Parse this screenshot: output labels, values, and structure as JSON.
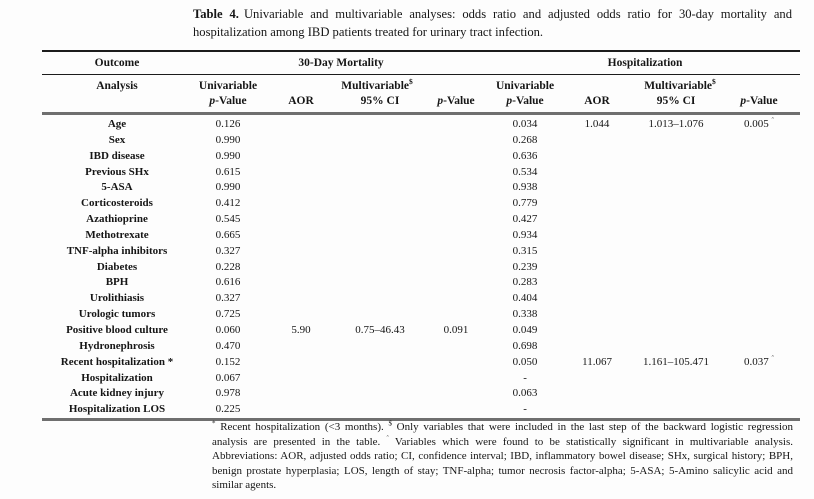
{
  "caption": {
    "label": "Table 4.",
    "text": "Univariable and multivariable analyses: odds ratio and adjusted odds ratio for 30-day mortality and hospitalization among IBD patients treated for urinary tract infection."
  },
  "table": {
    "group_headers": {
      "outcome": "Outcome",
      "mortality": "30-Day Mortality",
      "hospitalization": "Hospitalization"
    },
    "sub_headers": {
      "analysis": "Analysis",
      "univariable": "Univariable",
      "multivariable": "Multivariable",
      "multivariable_marker": "$"
    },
    "col_headers": {
      "p_italic": "p",
      "p_rest": "-Value",
      "aor": "AOR",
      "ci": "95% CI"
    },
    "significance_marker": "ˆ",
    "rows": [
      [
        "Age",
        "0.126",
        "",
        "",
        "",
        "0.034",
        "1.044",
        "1.013–1.076",
        "0.005^"
      ],
      [
        "Sex",
        "0.990",
        "",
        "",
        "",
        "0.268",
        "",
        "",
        ""
      ],
      [
        "IBD disease",
        "0.990",
        "",
        "",
        "",
        "0.636",
        "",
        "",
        ""
      ],
      [
        "Previous SHx",
        "0.615",
        "",
        "",
        "",
        "0.534",
        "",
        "",
        ""
      ],
      [
        "5-ASA",
        "0.990",
        "",
        "",
        "",
        "0.938",
        "",
        "",
        ""
      ],
      [
        "Corticosteroids",
        "0.412",
        "",
        "",
        "",
        "0.779",
        "",
        "",
        ""
      ],
      [
        "Azathioprine",
        "0.545",
        "",
        "",
        "",
        "0.427",
        "",
        "",
        ""
      ],
      [
        "Methotrexate",
        "0.665",
        "",
        "",
        "",
        "0.934",
        "",
        "",
        ""
      ],
      [
        "TNF-alpha inhibitors",
        "0.327",
        "",
        "",
        "",
        "0.315",
        "",
        "",
        ""
      ],
      [
        "Diabetes",
        "0.228",
        "",
        "",
        "",
        "0.239",
        "",
        "",
        ""
      ],
      [
        "BPH",
        "0.616",
        "",
        "",
        "",
        "0.283",
        "",
        "",
        ""
      ],
      [
        "Urolithiasis",
        "0.327",
        "",
        "",
        "",
        "0.404",
        "",
        "",
        ""
      ],
      [
        "Urologic tumors",
        "0.725",
        "",
        "",
        "",
        "0.338",
        "",
        "",
        ""
      ],
      [
        "Positive blood culture",
        "0.060",
        "5.90",
        "0.75–46.43",
        "0.091",
        "0.049",
        "",
        "",
        ""
      ],
      [
        "Hydronephrosis",
        "0.470",
        "",
        "",
        "",
        "0.698",
        "",
        "",
        ""
      ],
      [
        "Recent hospitalization *",
        "0.152",
        "",
        "",
        "",
        "0.050",
        "11.067",
        "1.161–105.471",
        "0.037^"
      ],
      [
        "Hospitalization",
        "0.067",
        "",
        "",
        "",
        "-",
        "",
        "",
        ""
      ],
      [
        "Acute kidney injury",
        "0.978",
        "",
        "",
        "",
        "0.063",
        "",
        "",
        ""
      ],
      [
        "Hospitalization LOS",
        "0.225",
        "",
        "",
        "",
        "-",
        "",
        "",
        ""
      ]
    ]
  },
  "footnote": {
    "segments": [
      {
        "sup": "*"
      },
      {
        "text": " Recent hospitalization (<3 months). "
      },
      {
        "sup": "$"
      },
      {
        "text": " Only variables that were included in the last step of the backward logistic regression analysis are presented in the table. "
      },
      {
        "sup": "ˆ"
      },
      {
        "text": " Variables which were found to be statistically significant in multivariable analysis. Abbreviations: AOR, adjusted odds ratio; CI, confidence interval; IBD, inflammatory bowel disease; SHx, surgical history; BPH, benign prostate hyperplasia; LOS, length of stay; TNF-alpha; tumor necrosis factor-alpha; 5-ASA; 5-Amino salicylic acid and similar agents."
      }
    ]
  }
}
